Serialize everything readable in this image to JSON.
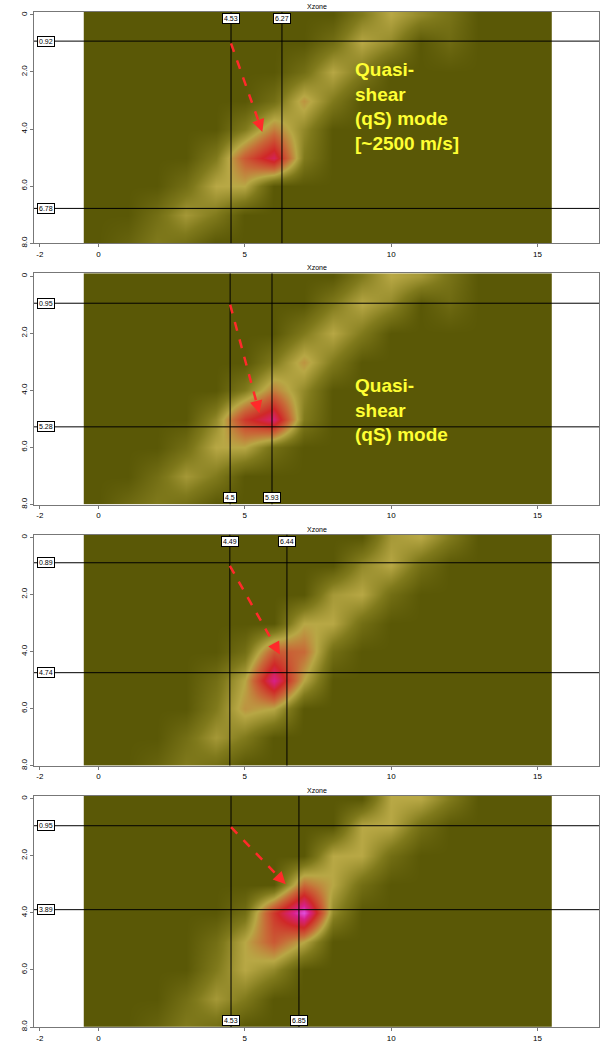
{
  "chart_data": [
    {
      "type": "heatmap",
      "xlabel": "Xzone",
      "annotation_lines": [
        "Quasi-",
        "shear",
        "(qS) mode",
        "[~2500 m/s]"
      ],
      "xlim": [
        -2.2,
        17.1
      ],
      "ylim": [
        -0.1,
        8.0
      ],
      "xticks": [
        -2,
        0,
        5,
        10,
        15
      ],
      "yticks": [
        0,
        {
          "value": 2,
          "label": "2.0"
        },
        {
          "value": 4,
          "label": "4.0"
        },
        {
          "value": 6,
          "label": "6.0"
        },
        {
          "value": 8,
          "label": "8.0"
        }
      ],
      "zlim": [
        0,
        1
      ],
      "hlines": [
        0.92,
        6.78
      ],
      "vlines": [
        4.53,
        6.27
      ],
      "x": [
        0,
        1,
        2,
        3,
        4,
        5,
        6,
        7,
        8,
        9,
        10,
        11,
        12,
        13,
        14,
        15
      ],
      "y": [
        0,
        1,
        2,
        3,
        4,
        5,
        6,
        7,
        8
      ],
      "z": [
        [
          0,
          0,
          0,
          0,
          0,
          0,
          0,
          0,
          0,
          0.15,
          0.3,
          0.2,
          0.12,
          0,
          0,
          0
        ],
        [
          0,
          0,
          0,
          0,
          0,
          0,
          0,
          0,
          0.1,
          0.3,
          0.2,
          0,
          0.08,
          0,
          0,
          0
        ],
        [
          0,
          0,
          0,
          0,
          0,
          0,
          0,
          0.1,
          0.3,
          0.15,
          0,
          0,
          0,
          0,
          0,
          0
        ],
        [
          0,
          0,
          0,
          0,
          0,
          0,
          0.1,
          0.35,
          0.15,
          0,
          0,
          0,
          0,
          0,
          0,
          0
        ],
        [
          0,
          0,
          0,
          0,
          0,
          0.15,
          0.4,
          0.2,
          0,
          0,
          0,
          0,
          0,
          0,
          0,
          0
        ],
        [
          0,
          0,
          0,
          0,
          0.15,
          0.5,
          0.75,
          0.15,
          0,
          0,
          0,
          0,
          0,
          0,
          0,
          0
        ],
        [
          0,
          0,
          0,
          0.1,
          0.3,
          0.3,
          0,
          0,
          0,
          0,
          0,
          0,
          0,
          0,
          0,
          0
        ],
        [
          0,
          0,
          0.1,
          0.25,
          0.15,
          0,
          0,
          0,
          0,
          0,
          0,
          0,
          0,
          0,
          0,
          0
        ],
        [
          0,
          0.05,
          0.15,
          0.1,
          0,
          0,
          0,
          0,
          0,
          0,
          0,
          0,
          0,
          0,
          0,
          0
        ]
      ]
    },
    {
      "type": "heatmap",
      "xlabel": "Xzone",
      "annotation_lines": [
        "Quasi-",
        "shear",
        "(qS) mode"
      ],
      "xlim": [
        -2.2,
        17.1
      ],
      "ylim": [
        -0.1,
        8.0
      ],
      "xticks": [
        -2,
        0,
        5,
        10,
        15
      ],
      "yticks": [
        0,
        {
          "value": 2,
          "label": "2.0"
        },
        {
          "value": 4,
          "label": "4.0"
        },
        {
          "value": 6,
          "label": "6.0"
        },
        {
          "value": 8,
          "label": "8.0"
        }
      ],
      "zlim": [
        0,
        1
      ],
      "hlines": [
        0.95,
        5.28
      ],
      "vlines": [
        4.5,
        5.93
      ],
      "x": [
        0,
        1,
        2,
        3,
        4,
        5,
        6,
        7,
        8,
        9,
        10,
        11,
        12,
        13,
        14,
        15
      ],
      "y": [
        0,
        1,
        2,
        3,
        4,
        5,
        6,
        7,
        8
      ],
      "z": [
        [
          0,
          0,
          0,
          0,
          0,
          0,
          0,
          0,
          0,
          0.15,
          0.3,
          0.25,
          0.12,
          0,
          0,
          0
        ],
        [
          0,
          0,
          0,
          0,
          0,
          0,
          0,
          0,
          0.15,
          0.3,
          0.2,
          0,
          0.08,
          0,
          0,
          0
        ],
        [
          0,
          0,
          0,
          0,
          0,
          0,
          0,
          0.15,
          0.3,
          0.15,
          0,
          0,
          0,
          0,
          0,
          0
        ],
        [
          0,
          0,
          0,
          0,
          0,
          0,
          0.15,
          0.35,
          0.15,
          0,
          0,
          0,
          0,
          0,
          0,
          0
        ],
        [
          0,
          0,
          0,
          0,
          0,
          0.15,
          0.4,
          0.2,
          0,
          0,
          0,
          0,
          0,
          0,
          0,
          0
        ],
        [
          0,
          0,
          0,
          0,
          0.2,
          0.6,
          0.8,
          0.15,
          0,
          0,
          0,
          0,
          0,
          0,
          0,
          0
        ],
        [
          0,
          0,
          0,
          0.1,
          0.3,
          0.3,
          0.1,
          0,
          0,
          0,
          0,
          0,
          0,
          0,
          0,
          0
        ],
        [
          0,
          0,
          0.1,
          0.25,
          0.15,
          0,
          0,
          0,
          0,
          0,
          0,
          0,
          0,
          0,
          0,
          0
        ],
        [
          0,
          0.08,
          0.15,
          0.1,
          0,
          0,
          0,
          0,
          0,
          0,
          0,
          0,
          0,
          0,
          0,
          0
        ]
      ]
    },
    {
      "type": "heatmap",
      "xlabel": "Xzone",
      "xlim": [
        -2.2,
        17.1
      ],
      "ylim": [
        -0.1,
        8.0
      ],
      "xticks": [
        -2,
        0,
        5,
        10,
        15
      ],
      "yticks": [
        0,
        {
          "value": 2,
          "label": "2.0"
        },
        {
          "value": 4,
          "label": "4.0"
        },
        {
          "value": 6,
          "label": "6.0"
        },
        {
          "value": 8,
          "label": "8.0"
        }
      ],
      "zlim": [
        0,
        1
      ],
      "hlines": [
        0.89,
        4.74
      ],
      "vlines": [
        4.49,
        6.44
      ],
      "x": [
        0,
        1,
        2,
        3,
        4,
        5,
        6,
        7,
        8,
        9,
        10,
        11,
        12,
        13,
        14,
        15
      ],
      "y": [
        0,
        1,
        2,
        3,
        4,
        5,
        6,
        7,
        8
      ],
      "z": [
        [
          0,
          0,
          0,
          0,
          0,
          0,
          0,
          0,
          0,
          0,
          0.25,
          0.3,
          0.15,
          0,
          0,
          0
        ],
        [
          0,
          0,
          0,
          0,
          0,
          0,
          0,
          0,
          0,
          0.2,
          0.3,
          0.1,
          0,
          0,
          0,
          0
        ],
        [
          0,
          0,
          0,
          0,
          0,
          0,
          0,
          0,
          0.25,
          0.3,
          0.1,
          0,
          0,
          0,
          0,
          0
        ],
        [
          0,
          0,
          0,
          0,
          0,
          0,
          0,
          0.3,
          0.3,
          0.1,
          0,
          0,
          0,
          0,
          0,
          0
        ],
        [
          0,
          0,
          0,
          0,
          0,
          0.1,
          0.5,
          0.45,
          0.1,
          0,
          0,
          0,
          0,
          0,
          0,
          0
        ],
        [
          0,
          0,
          0,
          0,
          0.1,
          0.3,
          0.85,
          0.3,
          0,
          0,
          0,
          0,
          0,
          0,
          0,
          0
        ],
        [
          0,
          0,
          0,
          0,
          0.15,
          0.35,
          0.3,
          0,
          0,
          0,
          0,
          0,
          0,
          0,
          0,
          0
        ],
        [
          0,
          0,
          0,
          0.1,
          0.25,
          0.15,
          0,
          0,
          0,
          0,
          0,
          0,
          0,
          0,
          0,
          0
        ],
        [
          0,
          0,
          0.05,
          0.15,
          0.1,
          0,
          0,
          0,
          0,
          0,
          0,
          0,
          0,
          0,
          0,
          0
        ]
      ]
    },
    {
      "type": "heatmap",
      "xlabel": "Xzone",
      "xlim": [
        -2.2,
        17.1
      ],
      "ylim": [
        -0.1,
        8.0
      ],
      "xticks": [
        -2,
        0,
        5,
        10,
        15
      ],
      "yticks": [
        0,
        {
          "value": 2,
          "label": "2.0"
        },
        {
          "value": 4,
          "label": "4.0"
        },
        {
          "value": 6,
          "label": "6.0"
        },
        {
          "value": 8,
          "label": "8.0"
        }
      ],
      "zlim": [
        0,
        1
      ],
      "hlines": [
        0.95,
        3.89
      ],
      "vlines": [
        4.53,
        6.85
      ],
      "x": [
        0,
        1,
        2,
        3,
        4,
        5,
        6,
        7,
        8,
        9,
        10,
        11,
        12,
        13,
        14,
        15
      ],
      "y": [
        0,
        1,
        2,
        3,
        4,
        5,
        6,
        7,
        8
      ],
      "z": [
        [
          0,
          0,
          0,
          0,
          0,
          0,
          0,
          0,
          0,
          0,
          0.3,
          0.3,
          0.15,
          0,
          0,
          0
        ],
        [
          0,
          0,
          0,
          0,
          0,
          0,
          0,
          0,
          0,
          0.3,
          0.3,
          0.1,
          0,
          0,
          0,
          0
        ],
        [
          0,
          0,
          0,
          0,
          0,
          0,
          0,
          0,
          0.3,
          0.3,
          0.1,
          0,
          0,
          0,
          0,
          0
        ],
        [
          0,
          0,
          0,
          0,
          0,
          0,
          0,
          0.45,
          0.3,
          0.1,
          0,
          0,
          0,
          0,
          0,
          0
        ],
        [
          0,
          0,
          0,
          0,
          0,
          0.1,
          0.6,
          1.0,
          0.2,
          0,
          0,
          0,
          0,
          0,
          0,
          0
        ],
        [
          0,
          0,
          0,
          0,
          0.1,
          0.3,
          0.5,
          0.3,
          0,
          0,
          0,
          0,
          0,
          0,
          0,
          0
        ],
        [
          0,
          0,
          0,
          0,
          0.15,
          0.3,
          0.2,
          0,
          0,
          0,
          0,
          0,
          0,
          0,
          0,
          0
        ],
        [
          0,
          0,
          0,
          0.1,
          0.25,
          0.15,
          0,
          0,
          0,
          0,
          0,
          0,
          0,
          0,
          0,
          0
        ],
        [
          0,
          0,
          0.05,
          0.15,
          0.1,
          0,
          0,
          0,
          0,
          0,
          0,
          0,
          0,
          0,
          0,
          0
        ]
      ]
    }
  ]
}
